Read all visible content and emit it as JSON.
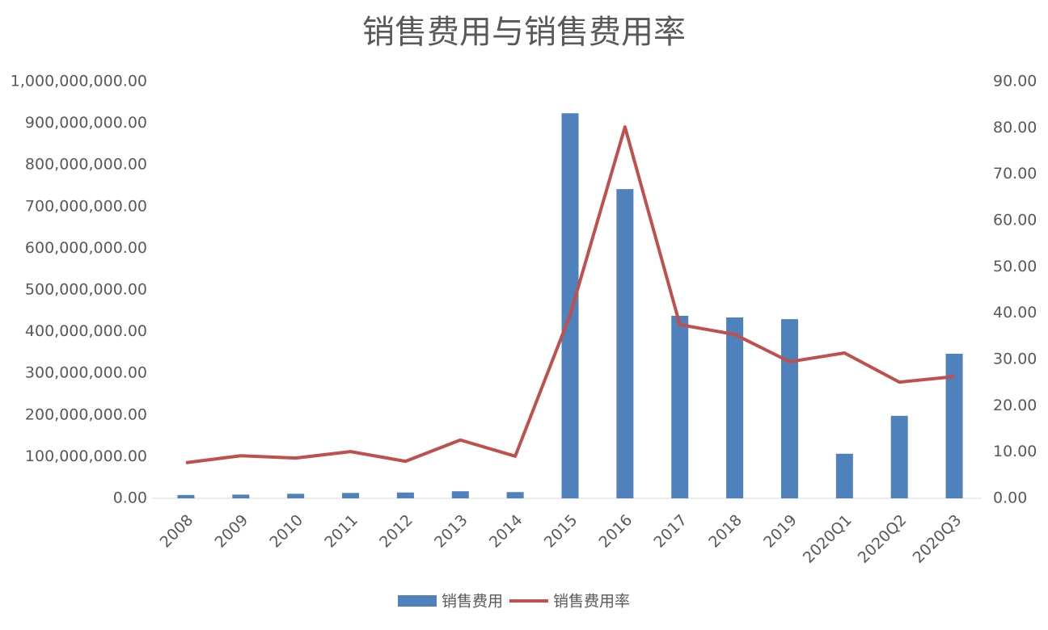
{
  "chart_data": {
    "type": "bar-line",
    "title": "销售费用与销售费用率",
    "categories": [
      "2008",
      "2009",
      "2010",
      "2011",
      "2012",
      "2013",
      "2014",
      "2015",
      "2016",
      "2017",
      "2018",
      "2019",
      "2020Q1",
      "2020Q2",
      "2020Q3"
    ],
    "series": [
      {
        "name": "销售费用",
        "type": "bar",
        "color": "#4f81bd",
        "axis": "y",
        "values": [
          8000000,
          9000000,
          11000000,
          13000000,
          14000000,
          17000000,
          15000000,
          924000000,
          742000000,
          438000000,
          434000000,
          430000000,
          107000000,
          198000000,
          347000000
        ]
      },
      {
        "name": "销售费用率",
        "type": "line",
        "color": "#c0504d",
        "axis": "y2",
        "values": [
          7.7,
          9.2,
          8.7,
          10.1,
          8.0,
          12.6,
          9.1,
          39.6,
          80.2,
          37.5,
          35.4,
          29.5,
          31.4,
          25.1,
          26.3
        ]
      }
    ],
    "ylim": [
      0,
      1000000000
    ],
    "yticks": [
      {
        "value": 0,
        "label": "0.00"
      },
      {
        "value": 100000000,
        "label": "100,000,000.00"
      },
      {
        "value": 200000000,
        "label": "200,000,000.00"
      },
      {
        "value": 300000000,
        "label": "300,000,000.00"
      },
      {
        "value": 400000000,
        "label": "400,000,000.00"
      },
      {
        "value": 500000000,
        "label": "500,000,000.00"
      },
      {
        "value": 600000000,
        "label": "600,000,000.00"
      },
      {
        "value": 700000000,
        "label": "700,000,000.00"
      },
      {
        "value": 800000000,
        "label": "800,000,000.00"
      },
      {
        "value": 900000000,
        "label": "900,000,000.00"
      },
      {
        "value": 1000000000,
        "label": "1,000,000,000.00"
      }
    ],
    "y2lim": [
      0,
      90
    ],
    "y2ticks": [
      {
        "value": 0,
        "label": "0.00"
      },
      {
        "value": 10,
        "label": "10.00"
      },
      {
        "value": 20,
        "label": "20.00"
      },
      {
        "value": 30,
        "label": "30.00"
      },
      {
        "value": 40,
        "label": "40.00"
      },
      {
        "value": 50,
        "label": "50.00"
      },
      {
        "value": 60,
        "label": "60.00"
      },
      {
        "value": 70,
        "label": "70.00"
      },
      {
        "value": 80,
        "label": "80.00"
      },
      {
        "value": 90,
        "label": "90.00"
      }
    ],
    "legend": "bottom"
  }
}
